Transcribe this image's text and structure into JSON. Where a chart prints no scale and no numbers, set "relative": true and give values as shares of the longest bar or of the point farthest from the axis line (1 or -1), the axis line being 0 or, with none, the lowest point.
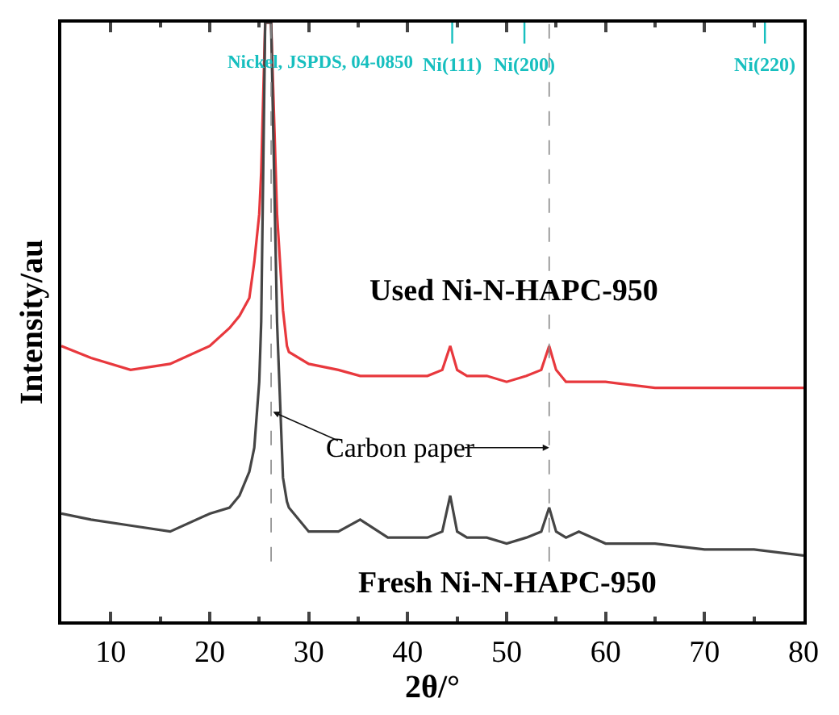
{
  "chart_data": {
    "type": "line",
    "relative": true,
    "xlabel": "2θ/°",
    "ylabel": "Intensity/au",
    "x": [
      5,
      8,
      12,
      16,
      20,
      22,
      23,
      24,
      24.5,
      25,
      25.2,
      25.6,
      26.2,
      26.8,
      27.4,
      27.8,
      28,
      30,
      33,
      35.2,
      38,
      40,
      42,
      43.5,
      44.3,
      45,
      46,
      48,
      50,
      52,
      53.5,
      54.3,
      55,
      56,
      57.3,
      60,
      65,
      70,
      75,
      80
    ],
    "series": [
      {
        "name": "Used Ni-N-HAPC-950",
        "color": "#e8383d",
        "values": [
          0.46,
          0.44,
          0.42,
          0.43,
          0.46,
          0.49,
          0.51,
          0.54,
          0.6,
          0.68,
          0.75,
          1.0,
          1.0,
          0.68,
          0.52,
          0.46,
          0.45,
          0.43,
          0.42,
          0.41,
          0.41,
          0.41,
          0.41,
          0.42,
          0.46,
          0.42,
          0.41,
          0.41,
          0.4,
          0.41,
          0.42,
          0.46,
          0.42,
          0.4,
          0.4,
          0.4,
          0.39,
          0.39,
          0.39,
          0.39
        ]
      },
      {
        "name": "Fresh Ni-N-HAPC-950",
        "color": "#454545",
        "values": [
          0.18,
          0.17,
          0.16,
          0.15,
          0.18,
          0.19,
          0.21,
          0.25,
          0.29,
          0.4,
          0.5,
          1.0,
          1.0,
          0.5,
          0.24,
          0.2,
          0.19,
          0.15,
          0.15,
          0.17,
          0.14,
          0.14,
          0.14,
          0.15,
          0.21,
          0.15,
          0.14,
          0.14,
          0.13,
          0.14,
          0.15,
          0.19,
          0.15,
          0.14,
          0.15,
          0.13,
          0.13,
          0.12,
          0.12,
          0.11
        ]
      }
    ],
    "xlim": [
      5,
      80
    ],
    "xticks": [
      10,
      20,
      30,
      40,
      50,
      60,
      70,
      80
    ],
    "ref_lines": [
      {
        "axis": "x",
        "value": 44.5,
        "label": "Ni(111)",
        "color": "#17bfbf"
      },
      {
        "axis": "x",
        "value": 51.8,
        "label": "Ni(200)",
        "color": "#17bfbf"
      },
      {
        "axis": "x",
        "value": 76.1,
        "label": "Ni(220)",
        "color": "#17bfbf"
      },
      {
        "axis": "x",
        "value": 26.2,
        "label": null,
        "color": "#888888",
        "line_style": "dashed"
      },
      {
        "axis": "x",
        "value": 54.3,
        "label": null,
        "color": "#888888",
        "line_style": "dashed"
      }
    ],
    "annotations": [
      "Nickel, JSPDS, 04-0850",
      {
        "text": "Carbon paper",
        "x": 26.4,
        "y": 0.35
      }
    ],
    "legend": false,
    "marker": "none",
    "line_style": "solid"
  }
}
